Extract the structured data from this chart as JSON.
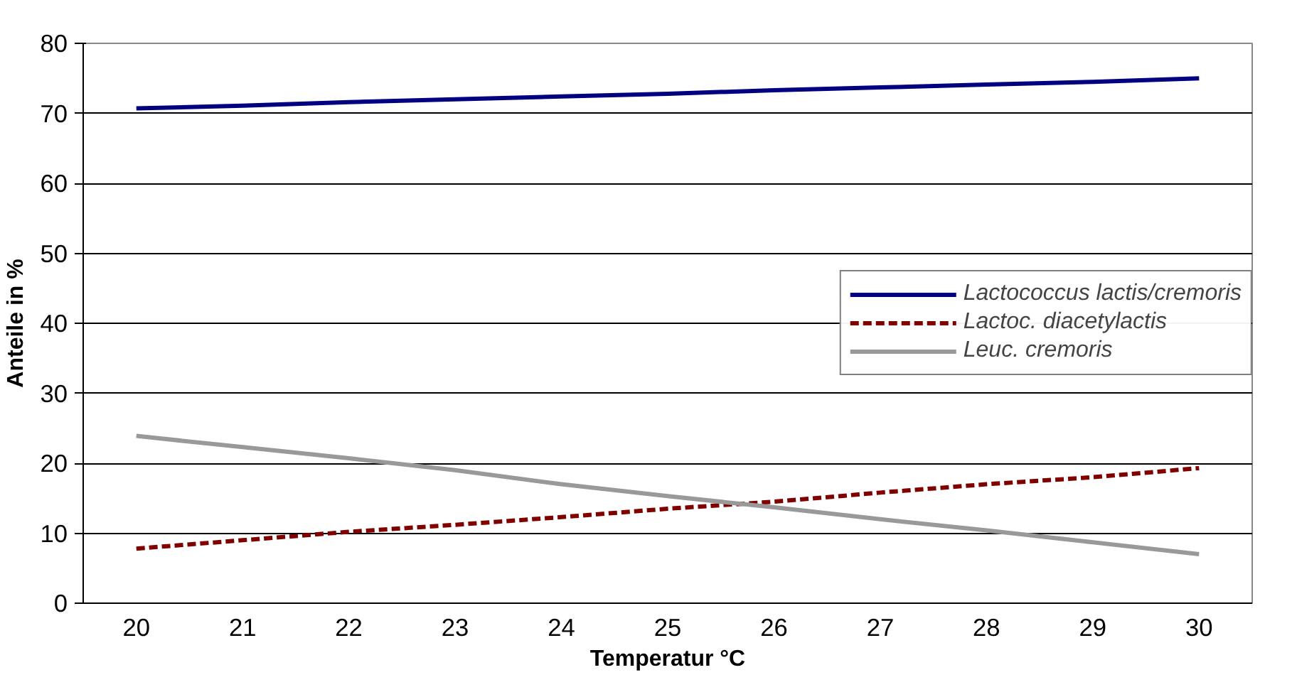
{
  "chart_data": {
    "type": "line",
    "xlabel": "Temperatur °C",
    "ylabel": "Anteile in %",
    "categories": [
      "20",
      "21",
      "22",
      "23",
      "24",
      "25",
      "26",
      "27",
      "28",
      "29",
      "30"
    ],
    "series": [
      {
        "name": "Lactococcus lactis/cremoris",
        "color": "#000080",
        "line_style": "solid",
        "values": [
          70.7,
          71.1,
          71.6,
          72.0,
          72.4,
          72.8,
          73.3,
          73.7,
          74.1,
          74.5,
          75.0
        ]
      },
      {
        "name": "Lactoc. diacetylactis",
        "color": "#800000",
        "line_style": "dashed",
        "values": [
          7.8,
          9.0,
          10.2,
          11.2,
          12.3,
          13.5,
          14.5,
          15.8,
          17.0,
          18.0,
          19.3
        ]
      },
      {
        "name": "Leuc. cremoris",
        "color": "#999999",
        "line_style": "solid",
        "values": [
          23.9,
          22.3,
          20.7,
          19.0,
          17.0,
          15.3,
          13.7,
          12.0,
          10.4,
          8.7,
          7.0
        ]
      }
    ],
    "ylim": [
      0,
      80
    ],
    "yticks": [
      0,
      10,
      20,
      30,
      40,
      50,
      60,
      70,
      80
    ],
    "grid": "y",
    "legend": "right",
    "marker": "none"
  }
}
